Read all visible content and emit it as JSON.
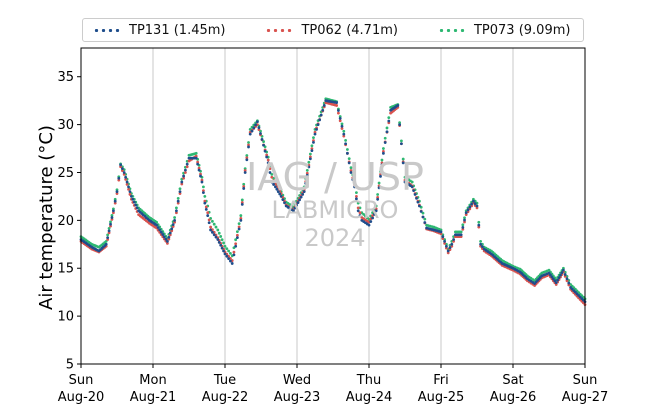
{
  "watermark": {
    "line1": "IAG / USP",
    "line2": "LABMICRO",
    "line3": "2024"
  },
  "legend": [
    {
      "name": "TP131 (1.45m)",
      "color": "#1f4e8c"
    },
    {
      "name": "TP062 (4.71m)",
      "color": "#d9534f"
    },
    {
      "name": "TP073 (9.09m)",
      "color": "#2eb872"
    }
  ],
  "chart_data": {
    "type": "scatter",
    "ylabel": "Air temperature (°C)",
    "ylim": [
      5,
      38
    ],
    "yticks": [
      5,
      10,
      15,
      20,
      25,
      30,
      35
    ],
    "xlim": [
      0,
      7
    ],
    "x_unit": "days since Sun Aug-20",
    "xticks": [
      {
        "day": "Sun",
        "date": "Aug-20"
      },
      {
        "day": "Mon",
        "date": "Aug-21"
      },
      {
        "day": "Tue",
        "date": "Aug-22"
      },
      {
        "day": "Wed",
        "date": "Aug-23"
      },
      {
        "day": "Thu",
        "date": "Aug-24"
      },
      {
        "day": "Fri",
        "date": "Aug-25"
      },
      {
        "day": "Sat",
        "date": "Aug-26"
      },
      {
        "day": "Sun",
        "date": "Aug-27"
      }
    ],
    "grid": "x-vertical",
    "legend_position": "top",
    "series": [
      {
        "name": "TP131 (1.45m)",
        "color": "#1f4e8c",
        "x": [
          0,
          0.15,
          0.25,
          0.35,
          0.45,
          0.5,
          0.55,
          0.6,
          0.7,
          0.8,
          0.95,
          1.05,
          1.2,
          1.3,
          1.4,
          1.5,
          1.6,
          1.68,
          1.72,
          1.76,
          1.8,
          1.9,
          2.0,
          2.1,
          2.22,
          2.28,
          2.35,
          2.45,
          2.6,
          2.65,
          2.7,
          2.78,
          2.85,
          2.95,
          3.1,
          3.25,
          3.4,
          3.55,
          3.65,
          3.75,
          3.8,
          3.85,
          3.9,
          4.0,
          4.1,
          4.2,
          4.3,
          4.4,
          4.5,
          4.6,
          4.7,
          4.8,
          4.9,
          5.0,
          5.1,
          5.15,
          5.2,
          5.28,
          5.35,
          5.45,
          5.5,
          5.55,
          5.6,
          5.7,
          5.85,
          6.0,
          6.1,
          6.2,
          6.3,
          6.4,
          6.5,
          6.6,
          6.7,
          6.8,
          7.0
        ],
        "y": [
          18,
          17.2,
          16.8,
          17.5,
          21,
          23,
          25.8,
          25,
          22.5,
          21,
          20,
          19.5,
          17.8,
          20,
          24,
          26.5,
          26.5,
          24,
          21.8,
          20.5,
          19,
          18,
          16.5,
          15.5,
          20,
          25,
          29,
          30.3,
          26,
          24,
          23.5,
          22.5,
          21.5,
          21,
          23,
          29,
          32.5,
          32.3,
          29,
          25,
          23.5,
          21,
          20,
          19.5,
          21,
          27,
          31.5,
          32,
          24,
          23.5,
          21.5,
          19.2,
          19,
          18.8,
          16.8,
          17.5,
          18.5,
          18.5,
          20.8,
          22,
          21.5,
          17.5,
          17,
          16.5,
          15.5,
          15,
          14.6,
          13.9,
          13.4,
          14.2,
          14.5,
          13.5,
          14.8,
          13,
          11.5
        ]
      },
      {
        "name": "TP062 (4.71m)",
        "color": "#d9534f",
        "x": [
          0,
          0.15,
          0.25,
          0.35,
          0.45,
          0.5,
          0.55,
          0.6,
          0.7,
          0.8,
          0.95,
          1.05,
          1.2,
          1.3,
          1.4,
          1.5,
          1.6,
          1.68,
          1.72,
          1.76,
          1.8,
          1.9,
          2.0,
          2.1,
          2.22,
          2.28,
          2.35,
          2.45,
          2.6,
          2.65,
          2.7,
          2.78,
          2.85,
          2.95,
          3.1,
          3.25,
          3.4,
          3.55,
          3.65,
          3.75,
          3.8,
          3.85,
          3.9,
          4.0,
          4.1,
          4.2,
          4.3,
          4.4,
          4.5,
          4.6,
          4.7,
          4.8,
          4.9,
          5.0,
          5.1,
          5.15,
          5.2,
          5.28,
          5.35,
          5.45,
          5.5,
          5.55,
          5.6,
          5.7,
          5.85,
          6.0,
          6.1,
          6.2,
          6.3,
          6.4,
          6.5,
          6.6,
          6.7,
          6.8,
          7.0
        ],
        "y": [
          17.8,
          17.0,
          16.7,
          17.3,
          20.8,
          22.8,
          25.6,
          24.8,
          22.2,
          20.6,
          19.7,
          19.2,
          17.6,
          19.8,
          23.8,
          26.2,
          26.7,
          24.2,
          22.0,
          20.8,
          19.3,
          18.2,
          16.7,
          15.8,
          20.2,
          25.2,
          29.2,
          30.0,
          26.3,
          24.5,
          23.8,
          22.8,
          21.6,
          21.1,
          23.2,
          29.2,
          32.3,
          32.0,
          28.8,
          25.2,
          23.7,
          21.3,
          20.3,
          19.8,
          21.2,
          27.2,
          31.2,
          31.8,
          24.2,
          23.6,
          21.6,
          19.1,
          18.9,
          18.6,
          16.6,
          17.3,
          18.3,
          18.3,
          20.6,
          21.8,
          21.3,
          17.3,
          16.8,
          16.3,
          15.3,
          14.8,
          14.4,
          13.7,
          13.2,
          14.0,
          14.3,
          13.3,
          14.6,
          12.8,
          11.2
        ]
      },
      {
        "name": "TP073 (9.09m)",
        "color": "#2eb872",
        "x": [
          0,
          0.15,
          0.25,
          0.35,
          0.45,
          0.5,
          0.55,
          0.6,
          0.7,
          0.8,
          0.95,
          1.05,
          1.2,
          1.3,
          1.4,
          1.5,
          1.6,
          1.68,
          1.72,
          1.76,
          1.8,
          1.9,
          2.0,
          2.1,
          2.22,
          2.28,
          2.35,
          2.45,
          2.6,
          2.65,
          2.7,
          2.78,
          2.85,
          2.95,
          3.1,
          3.25,
          3.4,
          3.55,
          3.65,
          3.75,
          3.8,
          3.85,
          3.9,
          4.0,
          4.1,
          4.2,
          4.3,
          4.4,
          4.5,
          4.6,
          4.7,
          4.8,
          4.9,
          5.0,
          5.1,
          5.15,
          5.2,
          5.28,
          5.35,
          5.45,
          5.5,
          5.55,
          5.6,
          5.7,
          5.85,
          6.0,
          6.1,
          6.2,
          6.3,
          6.4,
          6.5,
          6.6,
          6.7,
          6.8,
          7.0
        ],
        "y": [
          18.3,
          17.5,
          17.2,
          17.8,
          21.2,
          23.2,
          25.9,
          25.3,
          22.8,
          21.3,
          20.3,
          19.8,
          18.1,
          20.3,
          24.3,
          26.8,
          27.0,
          24.5,
          22.5,
          21.5,
          20.2,
          19.0,
          17.3,
          16.3,
          20.5,
          25.4,
          29.5,
          30.4,
          26.6,
          24.8,
          24.0,
          23.0,
          21.9,
          21.4,
          23.5,
          29.5,
          32.7,
          32.4,
          29.3,
          25.5,
          24.0,
          21.8,
          20.8,
          20.1,
          21.5,
          27.5,
          31.8,
          32.1,
          24.5,
          24.0,
          22.0,
          19.5,
          19.3,
          19.0,
          17.0,
          17.8,
          18.8,
          18.8,
          21.0,
          22.2,
          21.8,
          17.8,
          17.2,
          16.8,
          15.8,
          15.2,
          14.9,
          14.2,
          13.7,
          14.5,
          14.8,
          13.8,
          15.0,
          13.3,
          11.8
        ]
      }
    ]
  }
}
